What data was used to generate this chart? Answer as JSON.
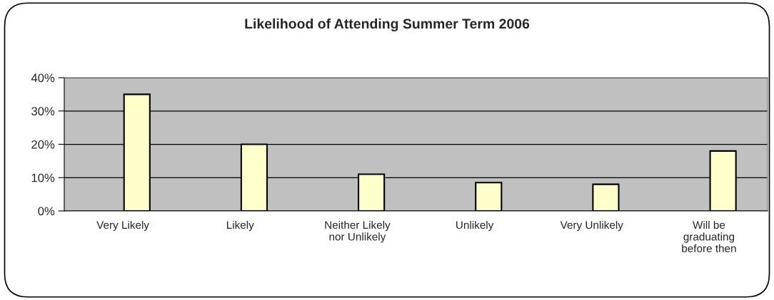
{
  "chart_data": {
    "type": "bar",
    "title": "Likelihood of Attending Summer Term 2006",
    "categories": [
      "Very Likely",
      "Likely",
      "Neither Likely\nnor Unlikely",
      "Unlikely",
      "Very Unlikely",
      "Will be\ngraduating\nbefore then"
    ],
    "values": [
      35,
      20,
      11,
      8.5,
      8,
      18
    ],
    "color": "#ffffcc",
    "ylim": [
      0,
      40
    ],
    "yticks": [
      {
        "value": 0,
        "label": "0%"
      },
      {
        "value": 10,
        "label": "10%"
      },
      {
        "value": 20,
        "label": "20%"
      },
      {
        "value": 30,
        "label": "30%"
      },
      {
        "value": 40,
        "label": "40%"
      }
    ],
    "grid": "y",
    "legend": false
  }
}
